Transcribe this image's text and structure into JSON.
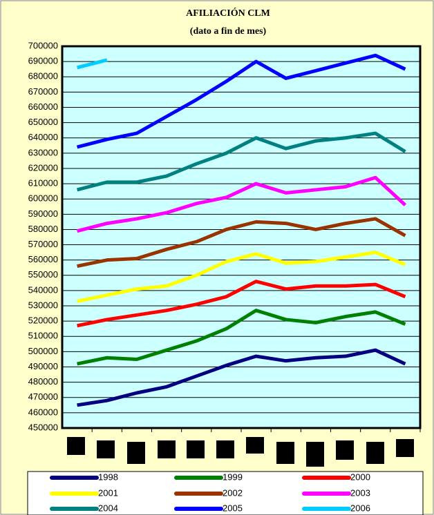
{
  "chart_data": {
    "type": "line",
    "title": "AFILIACIÓN  CLM",
    "subtitle": "(dato a fin de mes)",
    "categories": [
      null,
      null,
      null,
      null,
      null,
      null,
      null,
      null,
      null,
      null,
      null,
      null
    ],
    "ylim": [
      450000,
      700000
    ],
    "yticks": [
      450000,
      460000,
      470000,
      480000,
      490000,
      500000,
      510000,
      520000,
      530000,
      540000,
      550000,
      560000,
      570000,
      580000,
      590000,
      600000,
      610000,
      620000,
      630000,
      640000,
      650000,
      660000,
      670000,
      680000,
      690000,
      700000
    ],
    "grid": true,
    "series": [
      {
        "name": "1998",
        "color": "#000080",
        "values": [
          465000,
          468000,
          473000,
          477000,
          484000,
          491000,
          497000,
          494000,
          496000,
          497000,
          501000,
          492000
        ]
      },
      {
        "name": "1999",
        "color": "#008000",
        "values": [
          492000,
          496000,
          495000,
          501000,
          507000,
          515000,
          527000,
          521000,
          519000,
          523000,
          526000,
          518000
        ]
      },
      {
        "name": "2000",
        "color": "#ff0000",
        "values": [
          517000,
          521000,
          524000,
          527000,
          531000,
          536000,
          546000,
          541000,
          543000,
          543000,
          544000,
          536000
        ]
      },
      {
        "name": "2001",
        "color": "#ffff00",
        "values": [
          533000,
          537000,
          541000,
          543000,
          550000,
          559000,
          564000,
          558000,
          559000,
          562000,
          565000,
          557000
        ]
      },
      {
        "name": "2002",
        "color": "#993300",
        "values": [
          556000,
          560000,
          561000,
          567000,
          572000,
          580000,
          585000,
          584000,
          580000,
          584000,
          587000,
          576000
        ]
      },
      {
        "name": "2003",
        "color": "#ff00ff",
        "values": [
          579000,
          584000,
          587000,
          591000,
          597000,
          601000,
          610000,
          604000,
          606000,
          608000,
          614000,
          596000
        ]
      },
      {
        "name": "2004",
        "color": "#008080",
        "values": [
          606000,
          611000,
          611000,
          615000,
          623000,
          630000,
          640000,
          633000,
          638000,
          640000,
          643000,
          631000
        ]
      },
      {
        "name": "2005",
        "color": "#0000ff",
        "values": [
          634000,
          639000,
          643000,
          654000,
          665000,
          677000,
          690000,
          679000,
          684000,
          689000,
          694000,
          685000
        ]
      },
      {
        "name": "2006",
        "color": "#00ccff",
        "values": [
          686000,
          691000,
          null,
          null,
          null,
          null,
          null,
          null,
          null,
          null,
          null,
          null
        ]
      }
    ]
  }
}
